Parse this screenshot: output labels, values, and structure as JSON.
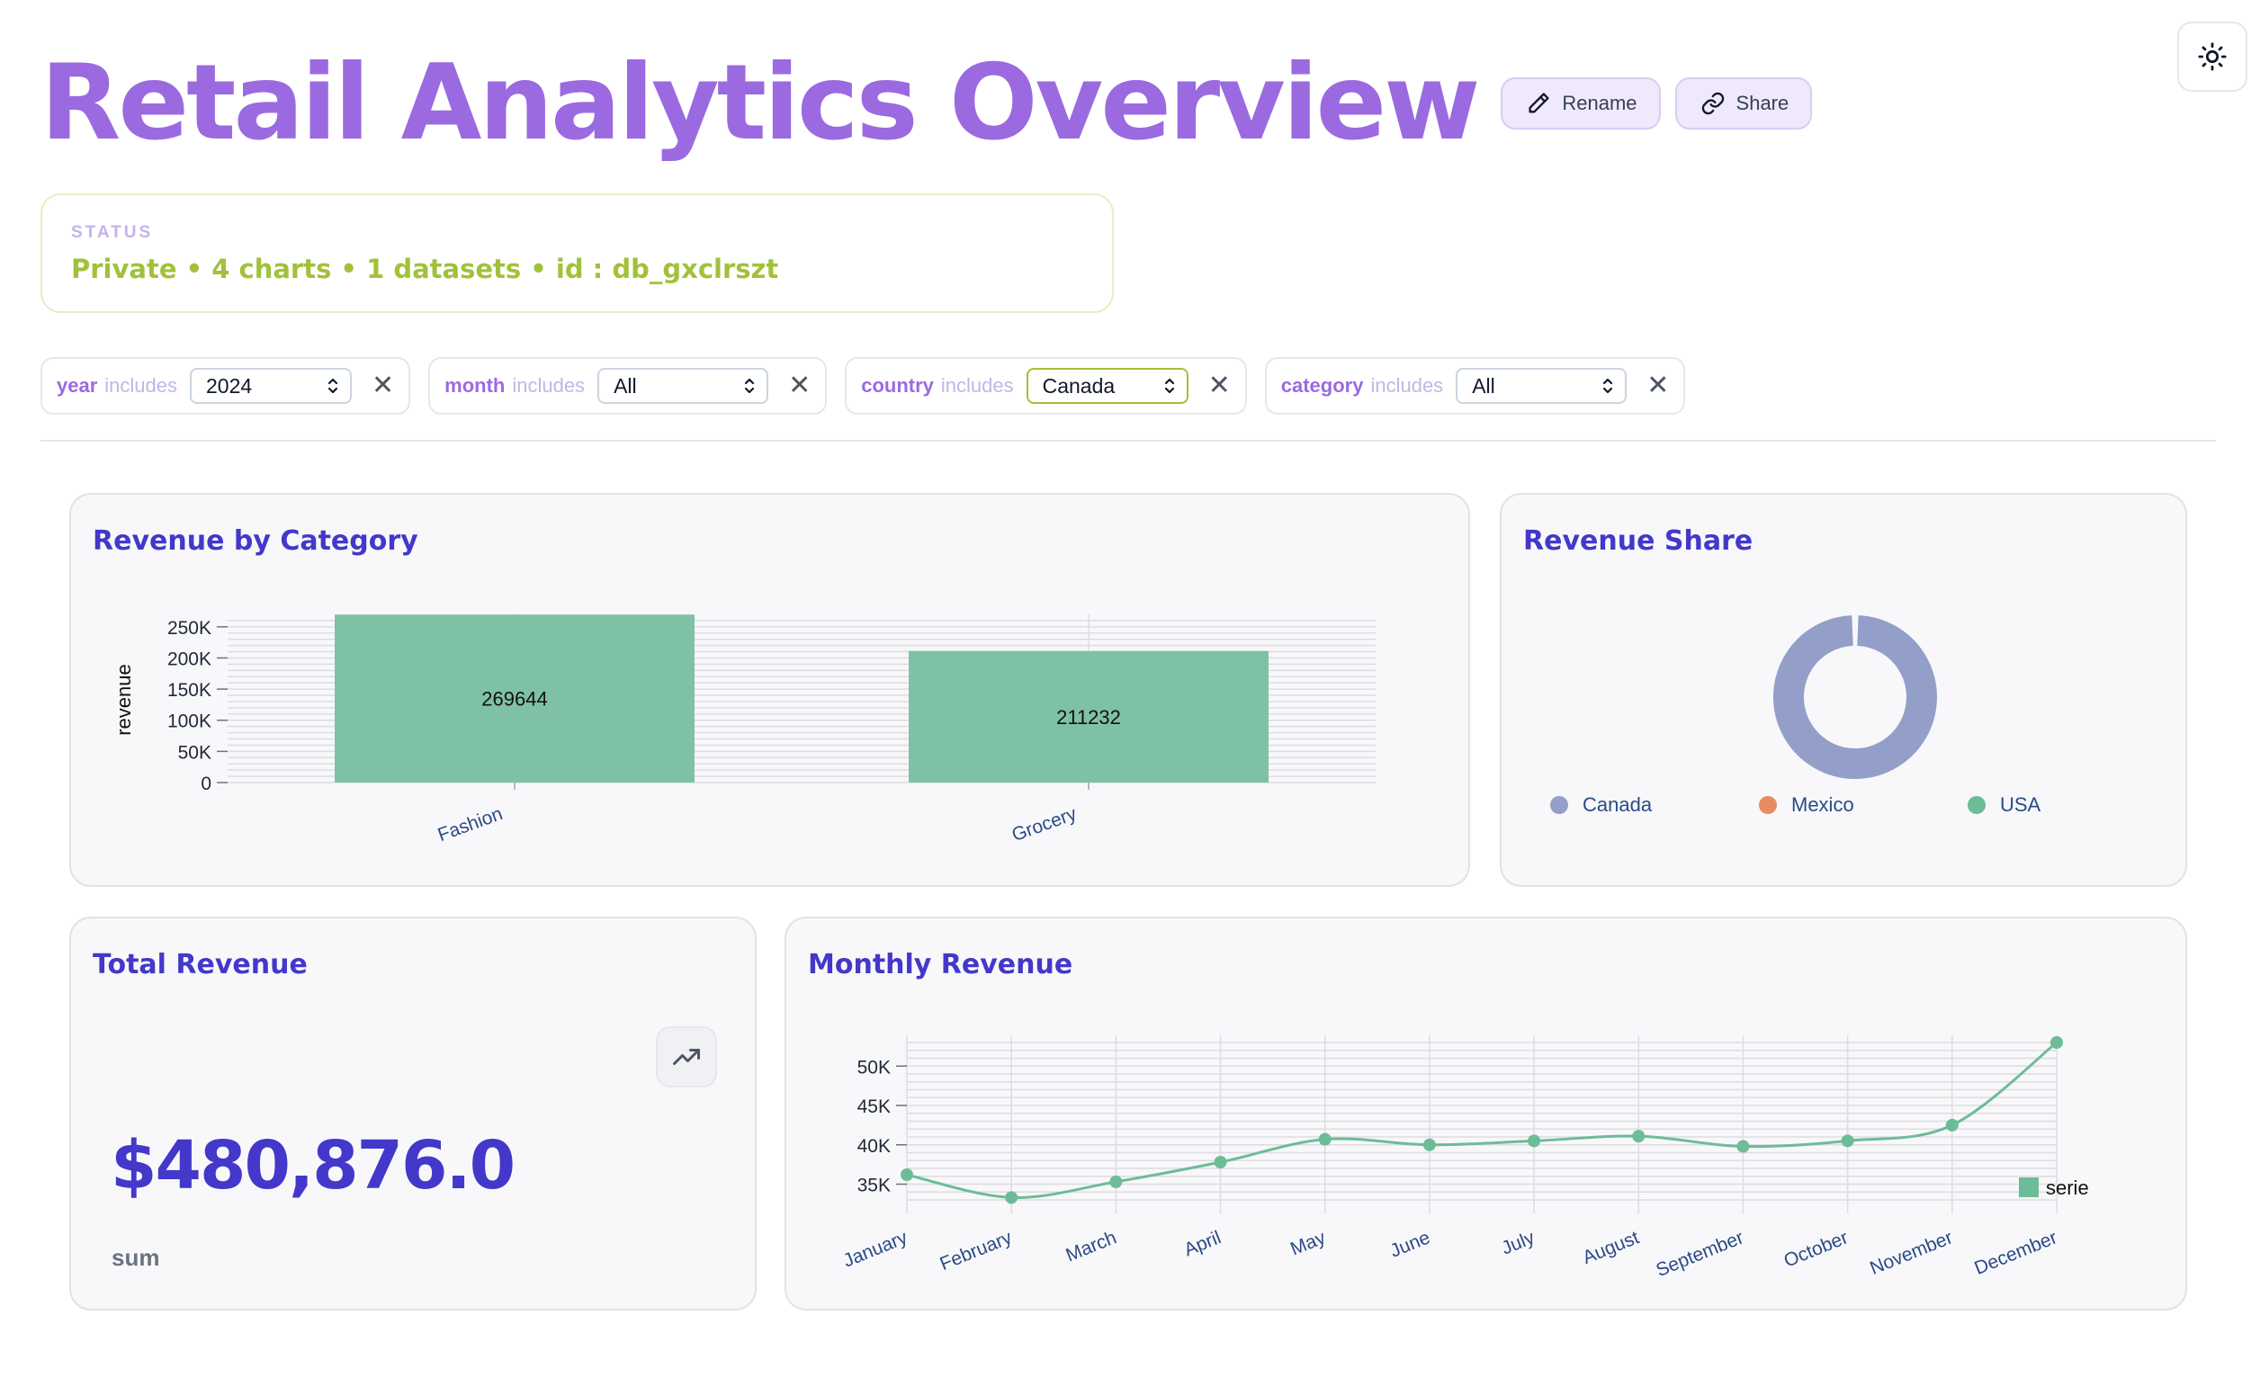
{
  "header": {
    "title": "Retail Analytics Overview",
    "rename_label": "Rename",
    "share_label": "Share"
  },
  "status": {
    "label": "STATUS",
    "text": "Private • 4 charts • 1 datasets • id : db_gxclrszt"
  },
  "filters": [
    {
      "field": "year",
      "op": "includes",
      "value": "2024",
      "active": false
    },
    {
      "field": "month",
      "op": "includes",
      "value": "All",
      "active": false
    },
    {
      "field": "country",
      "op": "includes",
      "value": "Canada",
      "active": true
    },
    {
      "field": "category",
      "op": "includes",
      "value": "All",
      "active": false
    }
  ],
  "icons": {
    "theme": "sun-icon",
    "rename": "pencil-icon",
    "share": "link-icon",
    "clear": "close-icon",
    "select": "chevron-updown-icon",
    "kpi": "trending-up-icon"
  },
  "colors": {
    "title": "#9b6ae0",
    "card_title": "#4338ca",
    "bar": "#7fc1a5",
    "status": "#a2c13a",
    "canada": "#949fc9",
    "mexico": "#e98b62",
    "usa": "#6cbc98"
  },
  "cards": {
    "revenue_by_category": {
      "title": "Revenue by Category"
    },
    "revenue_share": {
      "title": "Revenue Share"
    },
    "total_revenue": {
      "title": "Total Revenue",
      "value": "$480,876.0",
      "label": "sum"
    },
    "monthly_revenue": {
      "title": "Monthly Revenue"
    }
  },
  "chart_data": [
    {
      "type": "bar",
      "title": "Revenue by Category",
      "xlabel": "",
      "ylabel": "revenue",
      "categories": [
        "Fashion",
        "Grocery"
      ],
      "values": [
        269644,
        211232
      ],
      "data_labels": [
        "269644",
        "211232"
      ],
      "yticks": [
        0,
        50000,
        100000,
        150000,
        200000,
        250000
      ],
      "ytick_labels": [
        "0",
        "50K",
        "100K",
        "150K",
        "200K",
        "250K"
      ],
      "ylim": [
        0,
        270000
      ],
      "grid": true
    },
    {
      "type": "pie",
      "title": "Revenue Share",
      "donut": true,
      "labels": [
        "Canada",
        "Mexico",
        "USA"
      ],
      "values": [
        100,
        0,
        0
      ],
      "legend": "bottom"
    },
    {
      "type": "line",
      "title": "Monthly Revenue",
      "categories": [
        "January",
        "February",
        "March",
        "April",
        "May",
        "June",
        "July",
        "August",
        "September",
        "October",
        "November",
        "December"
      ],
      "series": [
        {
          "name": "serie",
          "values": [
            36200,
            33300,
            35300,
            37800,
            40700,
            40000,
            40500,
            41100,
            39800,
            40500,
            42500,
            53000
          ]
        }
      ],
      "yticks": [
        35000,
        40000,
        45000,
        50000
      ],
      "ytick_labels": [
        "35K",
        "40K",
        "45K",
        "50K"
      ],
      "ylim": [
        32200,
        53000
      ],
      "legend": "right",
      "grid": true
    }
  ]
}
